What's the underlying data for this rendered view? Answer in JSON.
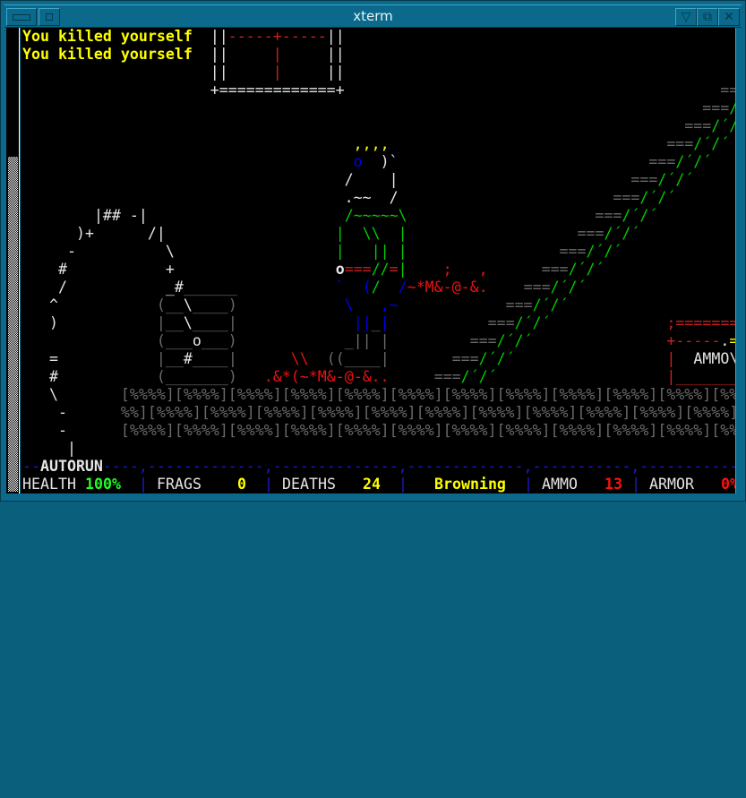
{
  "window": {
    "title": "xterm",
    "buttons": [
      "minimize-icon",
      "menu-icon",
      "shade-icon",
      "maximize-icon",
      "close-icon"
    ]
  },
  "colors": {
    "y": "#ffff00",
    "w": "#e5e5e5",
    "r": "#ee1111",
    "rd": "#cd2020",
    "g": "#6a6a6a",
    "n": "#00cd00",
    "ng": "#22ff22",
    "b": "#0000ee",
    "bl": "#1a1acd"
  },
  "terminal": {
    "rows": [
      [
        [
          "You killed yourself",
          "y",
          1
        ],
        [
          "  ",
          ""
        ],
        [
          "||",
          "w"
        ],
        [
          "-----+-----",
          "rd"
        ],
        [
          "||",
          "w"
        ]
      ],
      [
        [
          "You killed yourself",
          "y",
          1
        ],
        [
          "  ",
          ""
        ],
        [
          "||",
          "w"
        ],
        [
          "     ",
          ""
        ],
        [
          "|",
          "rd"
        ],
        [
          "     ",
          ""
        ],
        [
          "||",
          "w"
        ]
      ],
      [
        [
          "                     ",
          ""
        ],
        [
          "||",
          "w"
        ],
        [
          "     ",
          ""
        ],
        [
          "|",
          "rd"
        ],
        [
          "     ",
          ""
        ],
        [
          "||",
          "w"
        ]
      ],
      [
        [
          "                     ",
          ""
        ],
        [
          "+=============+",
          "w"
        ],
        [
          "                                          ",
          ""
        ],
        [
          "==",
          "g"
        ]
      ],
      [
        [
          "                                                                            ",
          ""
        ],
        [
          "===",
          "g"
        ],
        [
          "/",
          "n"
        ]
      ],
      [
        [
          "                                                                          ",
          ""
        ],
        [
          "===",
          "g"
        ],
        [
          "/´/",
          "n"
        ]
      ],
      [
        [
          "                                     ",
          ""
        ],
        [
          ",,,,",
          "y"
        ],
        [
          "                               ",
          ""
        ],
        [
          "===",
          "g"
        ],
        [
          "/´/´",
          "n"
        ]
      ],
      [
        [
          "                                     ",
          ""
        ],
        [
          "o",
          "b"
        ],
        [
          "  ",
          ""
        ],
        [
          ")`",
          "w"
        ],
        [
          "                            ",
          ""
        ],
        [
          "===",
          "g"
        ],
        [
          "/´/´",
          "n"
        ]
      ],
      [
        [
          "                                    ",
          ""
        ],
        [
          "/",
          "w"
        ],
        [
          "    ",
          ""
        ],
        [
          "|",
          "w"
        ],
        [
          "                          ",
          ""
        ],
        [
          "===",
          "g"
        ],
        [
          "/´/´",
          "n"
        ]
      ],
      [
        [
          "                                    ",
          ""
        ],
        [
          ".~~  /",
          "w"
        ],
        [
          "                        ",
          ""
        ],
        [
          "===",
          "g"
        ],
        [
          "/´/´",
          "n"
        ]
      ],
      [
        [
          "        ",
          ""
        ],
        [
          "|## -|",
          "w"
        ],
        [
          "                      ",
          ""
        ],
        [
          "/~~~~~\\",
          "n"
        ],
        [
          "                     ",
          ""
        ],
        [
          "===",
          "g"
        ],
        [
          "/´/´",
          "n"
        ]
      ],
      [
        [
          "      ",
          ""
        ],
        [
          ")+",
          "w"
        ],
        [
          "      ",
          ""
        ],
        [
          "/|",
          "w"
        ],
        [
          "                   ",
          ""
        ],
        [
          "|  \\\\  |",
          "n"
        ],
        [
          "                   ",
          ""
        ],
        [
          "===",
          "g"
        ],
        [
          "/´/´",
          "n"
        ]
      ],
      [
        [
          "     ",
          ""
        ],
        [
          "-",
          "w"
        ],
        [
          "          ",
          ""
        ],
        [
          "\\",
          "w"
        ],
        [
          "                  ",
          ""
        ],
        [
          "|   || |",
          "n"
        ],
        [
          "                 ",
          ""
        ],
        [
          "===",
          "g"
        ],
        [
          "/´/´",
          "n"
        ]
      ],
      [
        [
          "    ",
          ""
        ],
        [
          "#",
          "w"
        ],
        [
          "           ",
          ""
        ],
        [
          "+",
          "w"
        ],
        [
          "                  ",
          ""
        ],
        [
          "o",
          "w",
          1
        ],
        [
          "===",
          "rd"
        ],
        [
          "//",
          "n"
        ],
        [
          "=",
          "rd"
        ],
        [
          "|",
          "n"
        ],
        [
          "    ",
          ""
        ],
        [
          ";",
          "r"
        ],
        [
          "   ",
          ""
        ],
        [
          ",",
          "r"
        ],
        [
          "      ",
          ""
        ],
        [
          "===",
          "g"
        ],
        [
          "/´/´",
          "n"
        ]
      ],
      [
        [
          "    ",
          ""
        ],
        [
          "/",
          "w"
        ],
        [
          "           ",
          ""
        ],
        [
          "_#",
          "w"
        ],
        [
          "______",
          "g"
        ],
        [
          "           ",
          ""
        ],
        [
          "`",
          "b"
        ],
        [
          "  ",
          ""
        ],
        [
          "(",
          "b"
        ],
        [
          "/",
          "n"
        ],
        [
          "  ",
          ""
        ],
        [
          "/",
          "b"
        ],
        [
          "~",
          "r"
        ],
        [
          "*M&-@-&.",
          "r"
        ],
        [
          "    ",
          ""
        ],
        [
          "===",
          "g"
        ],
        [
          "/´/´",
          "n"
        ]
      ],
      [
        [
          "   ",
          ""
        ],
        [
          "^",
          "w"
        ],
        [
          "           ",
          ""
        ],
        [
          "(__",
          "g"
        ],
        [
          "\\",
          "w"
        ],
        [
          "____)",
          "g"
        ],
        [
          "            ",
          ""
        ],
        [
          "\\",
          "b"
        ],
        [
          "   ",
          ""
        ],
        [
          ",~",
          "b"
        ],
        [
          "            ",
          ""
        ],
        [
          "===",
          "g"
        ],
        [
          "/´/´",
          "n"
        ]
      ],
      [
        [
          "   ",
          ""
        ],
        [
          ")",
          "w"
        ],
        [
          "           ",
          ""
        ],
        [
          "|__",
          "g"
        ],
        [
          "\\",
          "w"
        ],
        [
          "____|",
          "g"
        ],
        [
          "             ",
          ""
        ],
        [
          "||",
          "b"
        ],
        [
          "_",
          "g"
        ],
        [
          "|",
          "b"
        ],
        [
          "           ",
          ""
        ],
        [
          "===",
          "g"
        ],
        [
          "/´/´",
          "n"
        ],
        [
          "             ",
          ""
        ],
        [
          ";=======",
          "rd"
        ]
      ],
      [
        [
          "               ",
          ""
        ],
        [
          "(___",
          "g"
        ],
        [
          "o",
          "w"
        ],
        [
          "___)",
          "g"
        ],
        [
          "            ",
          ""
        ],
        [
          "_||",
          "g"
        ],
        [
          " ",
          ""
        ],
        [
          "|",
          "g"
        ],
        [
          "         ",
          ""
        ],
        [
          "===",
          "g"
        ],
        [
          "/´/´",
          "n"
        ],
        [
          "               ",
          ""
        ],
        [
          "+-----",
          "rd"
        ],
        [
          ".",
          "w"
        ],
        [
          "=",
          "y"
        ]
      ],
      [
        [
          "   ",
          ""
        ],
        [
          "=",
          "w"
        ],
        [
          "           ",
          ""
        ],
        [
          "|__",
          "g"
        ],
        [
          "#",
          "w"
        ],
        [
          "____|",
          "g"
        ],
        [
          "      ",
          ""
        ],
        [
          "\\\\",
          "r"
        ],
        [
          "  ",
          ""
        ],
        [
          "((____|",
          "g"
        ],
        [
          "       ",
          ""
        ],
        [
          "===",
          "g"
        ],
        [
          "/´/´",
          "n"
        ],
        [
          "                 ",
          ""
        ],
        [
          "|",
          "rd"
        ],
        [
          "  ",
          ""
        ],
        [
          "AMMO\\",
          "w"
        ]
      ],
      [
        [
          "   ",
          ""
        ],
        [
          "#",
          "w"
        ],
        [
          "           ",
          ""
        ],
        [
          "(_______)",
          "g"
        ],
        [
          "   ",
          ""
        ],
        [
          ".&*(~*M&-@-&..",
          "r"
        ],
        [
          "     ",
          ""
        ],
        [
          "===",
          "g"
        ],
        [
          "/´/´",
          "n"
        ],
        [
          "                   ",
          ""
        ],
        [
          "|_______",
          "rd"
        ]
      ],
      [
        [
          "   ",
          ""
        ],
        [
          "\\",
          "w"
        ],
        [
          "       ",
          ""
        ],
        [
          "[%%%%][%%%%][%%%%][%%%%][%%%%][%%%%][%%%%][%%%%][%%%%][%%%%][%%%%][%%",
          "g"
        ]
      ],
      [
        [
          "    ",
          ""
        ],
        [
          "-",
          "w"
        ],
        [
          "      ",
          ""
        ],
        [
          "%%][%%%%][%%%%][%%%%][%%%%][%%%%][%%%%][%%%%][%%%%][%%%%][%%%%][%%%%]",
          "g"
        ]
      ],
      [
        [
          "    ",
          ""
        ],
        [
          "-",
          "w"
        ],
        [
          "      ",
          ""
        ],
        [
          "[%%%%][%%%%][%%%%][%%%%][%%%%][%%%%][%%%%][%%%%][%%%%][%%%%][%%%%][%%",
          "g"
        ]
      ],
      [
        [
          "     ",
          ""
        ],
        [
          "|",
          "w"
        ]
      ],
      [
        [
          "--",
          "bl"
        ],
        [
          "AUTORUN",
          "w",
          1
        ],
        [
          "----",
          "bl"
        ],
        [
          ",",
          "bl"
        ],
        [
          "-------------",
          "bl"
        ],
        [
          ",",
          "bl"
        ],
        [
          "--------------",
          "bl"
        ],
        [
          ",",
          "bl"
        ],
        [
          "-------------",
          "bl"
        ],
        [
          ",",
          "bl"
        ],
        [
          "-----------",
          "bl"
        ],
        [
          ",",
          "bl"
        ],
        [
          "-----------",
          "bl"
        ]
      ]
    ]
  },
  "status": {
    "health_label": "HEALTH",
    "health": "100%",
    "frags_label": "FRAGS",
    "frags": "0",
    "deaths_label": "DEATHS",
    "deaths": "24",
    "weapon": "Browning",
    "ammo_label": "AMMO",
    "ammo": "13",
    "armor_label": "ARMOR",
    "armor": "0%",
    "separator": "|"
  }
}
